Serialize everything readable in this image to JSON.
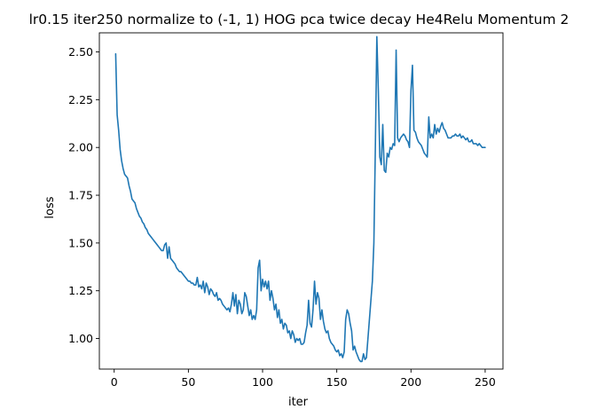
{
  "chart_data": {
    "type": "line",
    "title": "lr0.15 iter250 normalize to (-1, 1) HOG pca twice decay He4Relu Momentum 2",
    "xlabel": "iter",
    "ylabel": "loss",
    "xlim": [
      -10,
      262
    ],
    "ylim": [
      0.84,
      2.6
    ],
    "xticks": [
      0,
      50,
      100,
      150,
      200,
      250
    ],
    "xtick_labels": [
      "0",
      "50",
      "100",
      "150",
      "200",
      "250"
    ],
    "yticks": [
      1.0,
      1.25,
      1.5,
      1.75,
      2.0,
      2.25,
      2.5
    ],
    "ytick_labels": [
      "1.00",
      "1.25",
      "1.50",
      "1.75",
      "2.00",
      "2.25",
      "2.50"
    ],
    "grid": false,
    "series": [
      {
        "color": "#1f77b4",
        "points": [
          [
            1,
            2.49
          ],
          [
            2,
            2.17
          ],
          [
            3,
            2.09
          ],
          [
            4,
            1.99
          ],
          [
            5,
            1.93
          ],
          [
            6,
            1.89
          ],
          [
            7,
            1.86
          ],
          [
            8,
            1.85
          ],
          [
            9,
            1.84
          ],
          [
            10,
            1.8
          ],
          [
            11,
            1.77
          ],
          [
            12,
            1.73
          ],
          [
            13,
            1.72
          ],
          [
            14,
            1.71
          ],
          [
            15,
            1.68
          ],
          [
            16,
            1.66
          ],
          [
            17,
            1.64
          ],
          [
            18,
            1.63
          ],
          [
            19,
            1.61
          ],
          [
            20,
            1.6
          ],
          [
            21,
            1.58
          ],
          [
            22,
            1.57
          ],
          [
            23,
            1.55
          ],
          [
            24,
            1.54
          ],
          [
            25,
            1.53
          ],
          [
            26,
            1.52
          ],
          [
            27,
            1.51
          ],
          [
            28,
            1.5
          ],
          [
            29,
            1.49
          ],
          [
            30,
            1.48
          ],
          [
            31,
            1.47
          ],
          [
            32,
            1.46
          ],
          [
            33,
            1.46
          ],
          [
            34,
            1.49
          ],
          [
            35,
            1.5
          ],
          [
            36,
            1.42
          ],
          [
            37,
            1.48
          ],
          [
            38,
            1.42
          ],
          [
            39,
            1.41
          ],
          [
            40,
            1.4
          ],
          [
            41,
            1.39
          ],
          [
            42,
            1.37
          ],
          [
            43,
            1.36
          ],
          [
            44,
            1.35
          ],
          [
            45,
            1.35
          ],
          [
            46,
            1.34
          ],
          [
            47,
            1.33
          ],
          [
            48,
            1.32
          ],
          [
            49,
            1.31
          ],
          [
            50,
            1.3
          ],
          [
            51,
            1.3
          ],
          [
            52,
            1.29
          ],
          [
            53,
            1.29
          ],
          [
            54,
            1.28
          ],
          [
            55,
            1.28
          ],
          [
            56,
            1.32
          ],
          [
            57,
            1.27
          ],
          [
            58,
            1.28
          ],
          [
            59,
            1.26
          ],
          [
            60,
            1.3
          ],
          [
            61,
            1.24
          ],
          [
            62,
            1.29
          ],
          [
            63,
            1.27
          ],
          [
            64,
            1.23
          ],
          [
            65,
            1.26
          ],
          [
            66,
            1.25
          ],
          [
            67,
            1.23
          ],
          [
            68,
            1.22
          ],
          [
            69,
            1.24
          ],
          [
            70,
            1.2
          ],
          [
            71,
            1.21
          ],
          [
            72,
            1.2
          ],
          [
            73,
            1.18
          ],
          [
            74,
            1.17
          ],
          [
            75,
            1.16
          ],
          [
            76,
            1.15
          ],
          [
            77,
            1.16
          ],
          [
            78,
            1.14
          ],
          [
            79,
            1.18
          ],
          [
            80,
            1.24
          ],
          [
            81,
            1.17
          ],
          [
            82,
            1.23
          ],
          [
            83,
            1.13
          ],
          [
            84,
            1.2
          ],
          [
            85,
            1.18
          ],
          [
            86,
            1.13
          ],
          [
            87,
            1.15
          ],
          [
            88,
            1.24
          ],
          [
            89,
            1.22
          ],
          [
            90,
            1.17
          ],
          [
            91,
            1.12
          ],
          [
            92,
            1.15
          ],
          [
            93,
            1.1
          ],
          [
            94,
            1.12
          ],
          [
            95,
            1.1
          ],
          [
            96,
            1.15
          ],
          [
            97,
            1.37
          ],
          [
            98,
            1.41
          ],
          [
            99,
            1.25
          ],
          [
            100,
            1.31
          ],
          [
            101,
            1.27
          ],
          [
            102,
            1.3
          ],
          [
            103,
            1.26
          ],
          [
            104,
            1.3
          ],
          [
            105,
            1.2
          ],
          [
            106,
            1.25
          ],
          [
            107,
            1.21
          ],
          [
            108,
            1.15
          ],
          [
            109,
            1.18
          ],
          [
            110,
            1.11
          ],
          [
            111,
            1.15
          ],
          [
            112,
            1.08
          ],
          [
            113,
            1.1
          ],
          [
            114,
            1.05
          ],
          [
            115,
            1.08
          ],
          [
            116,
            1.07
          ],
          [
            117,
            1.03
          ],
          [
            118,
            1.04
          ],
          [
            119,
            1.0
          ],
          [
            120,
            1.04
          ],
          [
            121,
            1.02
          ],
          [
            122,
            0.98
          ],
          [
            123,
            1.0
          ],
          [
            124,
            0.99
          ],
          [
            125,
            1.0
          ],
          [
            126,
            0.97
          ],
          [
            127,
            0.97
          ],
          [
            128,
            0.98
          ],
          [
            129,
            1.03
          ],
          [
            130,
            1.07
          ],
          [
            131,
            1.2
          ],
          [
            132,
            1.08
          ],
          [
            133,
            1.06
          ],
          [
            134,
            1.15
          ],
          [
            135,
            1.3
          ],
          [
            136,
            1.18
          ],
          [
            137,
            1.24
          ],
          [
            138,
            1.21
          ],
          [
            139,
            1.1
          ],
          [
            140,
            1.15
          ],
          [
            141,
            1.09
          ],
          [
            142,
            1.05
          ],
          [
            143,
            1.03
          ],
          [
            144,
            1.04
          ],
          [
            145,
            1.0
          ],
          [
            146,
            0.98
          ],
          [
            147,
            0.97
          ],
          [
            148,
            0.96
          ],
          [
            149,
            0.94
          ],
          [
            150,
            0.93
          ],
          [
            151,
            0.94
          ],
          [
            152,
            0.91
          ],
          [
            153,
            0.92
          ],
          [
            154,
            0.9
          ],
          [
            155,
            0.93
          ],
          [
            156,
            1.1
          ],
          [
            157,
            1.15
          ],
          [
            158,
            1.13
          ],
          [
            159,
            1.08
          ],
          [
            160,
            1.04
          ],
          [
            161,
            0.94
          ],
          [
            162,
            0.96
          ],
          [
            163,
            0.93
          ],
          [
            164,
            0.91
          ],
          [
            165,
            0.89
          ],
          [
            166,
            0.88
          ],
          [
            167,
            0.88
          ],
          [
            168,
            0.92
          ],
          [
            169,
            0.89
          ],
          [
            170,
            0.9
          ],
          [
            171,
            1.0
          ],
          [
            172,
            1.1
          ],
          [
            173,
            1.2
          ],
          [
            174,
            1.3
          ],
          [
            175,
            1.5
          ],
          [
            176,
            2.0
          ],
          [
            177,
            2.58
          ],
          [
            178,
            2.3
          ],
          [
            179,
            1.95
          ],
          [
            180,
            1.91
          ],
          [
            181,
            2.12
          ],
          [
            182,
            1.88
          ],
          [
            183,
            1.87
          ],
          [
            184,
            1.97
          ],
          [
            185,
            1.95
          ],
          [
            186,
            2.0
          ],
          [
            187,
            1.99
          ],
          [
            188,
            2.02
          ],
          [
            189,
            2.01
          ],
          [
            190,
            2.51
          ],
          [
            191,
            2.05
          ],
          [
            192,
            2.03
          ],
          [
            193,
            2.05
          ],
          [
            194,
            2.06
          ],
          [
            195,
            2.07
          ],
          [
            196,
            2.06
          ],
          [
            197,
            2.04
          ],
          [
            198,
            2.03
          ],
          [
            199,
            2.0
          ],
          [
            200,
            2.3
          ],
          [
            201,
            2.43
          ],
          [
            202,
            2.09
          ],
          [
            203,
            2.08
          ],
          [
            204,
            2.05
          ],
          [
            205,
            2.03
          ],
          [
            206,
            2.02
          ],
          [
            207,
            2.01
          ],
          [
            208,
            1.99
          ],
          [
            209,
            1.97
          ],
          [
            210,
            1.96
          ],
          [
            211,
            1.95
          ],
          [
            212,
            2.16
          ],
          [
            213,
            2.05
          ],
          [
            214,
            2.07
          ],
          [
            215,
            2.05
          ],
          [
            216,
            2.12
          ],
          [
            217,
            2.07
          ],
          [
            218,
            2.1
          ],
          [
            219,
            2.08
          ],
          [
            220,
            2.11
          ],
          [
            221,
            2.13
          ],
          [
            222,
            2.1
          ],
          [
            223,
            2.09
          ],
          [
            224,
            2.07
          ],
          [
            225,
            2.05
          ],
          [
            226,
            2.05
          ],
          [
            227,
            2.05
          ],
          [
            228,
            2.06
          ],
          [
            229,
            2.06
          ],
          [
            230,
            2.07
          ],
          [
            231,
            2.06
          ],
          [
            232,
            2.06
          ],
          [
            233,
            2.07
          ],
          [
            234,
            2.05
          ],
          [
            235,
            2.06
          ],
          [
            236,
            2.05
          ],
          [
            237,
            2.04
          ],
          [
            238,
            2.05
          ],
          [
            239,
            2.03
          ],
          [
            240,
            2.03
          ],
          [
            241,
            2.04
          ],
          [
            242,
            2.02
          ],
          [
            243,
            2.02
          ],
          [
            244,
            2.02
          ],
          [
            245,
            2.01
          ],
          [
            246,
            2.02
          ],
          [
            247,
            2.01
          ],
          [
            248,
            2.0
          ],
          [
            249,
            2.0
          ],
          [
            250,
            2.0
          ]
        ]
      }
    ]
  }
}
